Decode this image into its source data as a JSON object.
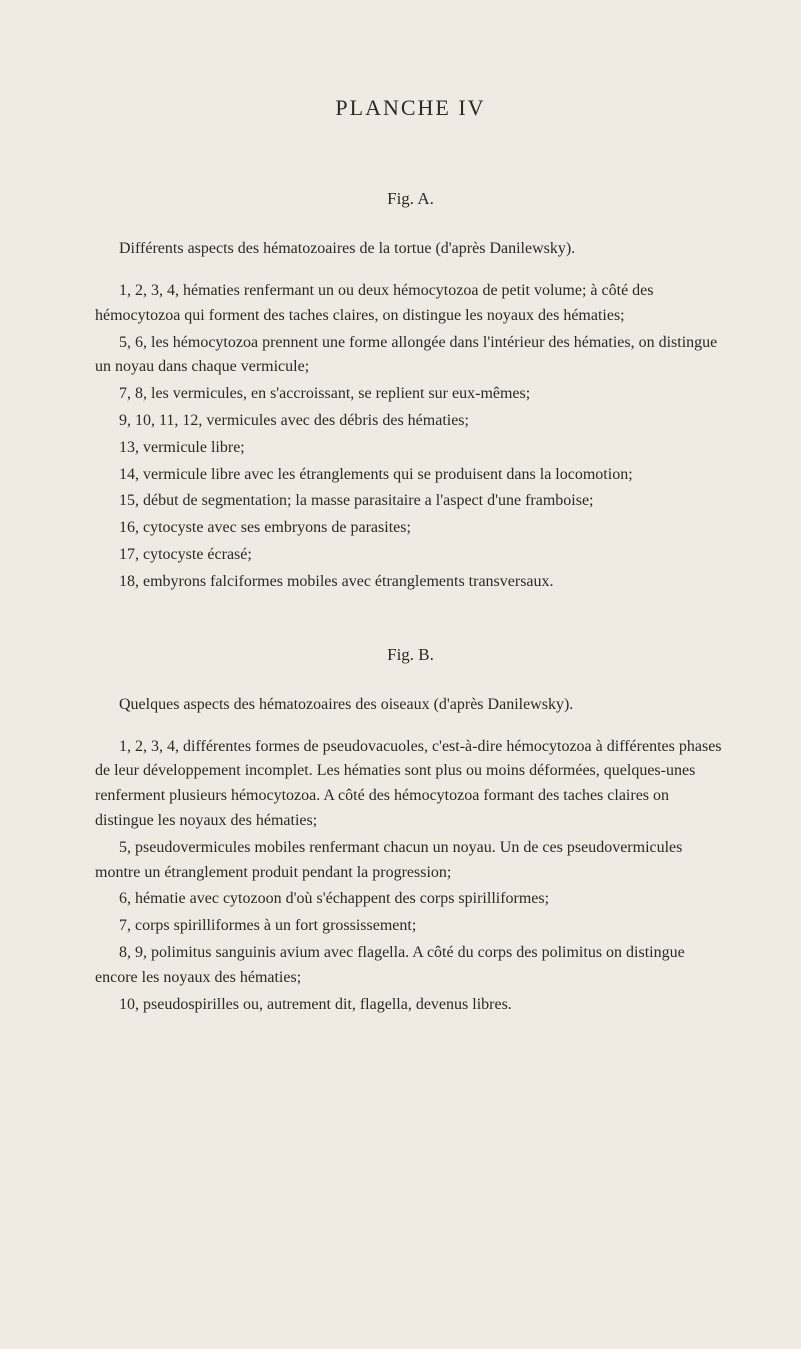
{
  "page": {
    "title": "PLANCHE IV",
    "background_color": "#f0ebe2",
    "text_color": "#2a2a2a"
  },
  "sectionA": {
    "fig_label": "Fig. A.",
    "intro": "Différents aspects des hématozoaires de la tortue (d'après Danilewsky).",
    "items": [
      "1, 2, 3, 4, hématies renfermant un ou deux hémocytozoa de petit volume; à côté des hémocytozoa qui forment des taches claires, on distingue les noyaux des hématies;",
      "5, 6, les hémocytozoa prennent une forme allongée dans l'intérieur des hématies, on distingue un noyau dans chaque vermicule;",
      "7, 8, les vermicules, en s'accroissant, se replient sur eux-mêmes;",
      "9, 10, 11, 12, vermicules avec des débris des hématies;",
      "13, vermicule libre;",
      "14, vermicule libre avec les étranglements qui se produisent dans la locomotion;",
      "15, début de segmentation; la masse parasitaire a l'aspect d'une framboise;",
      "16, cytocyste avec ses embryons de parasites;",
      "17, cytocyste écrasé;",
      "18, embyrons falciformes mobiles avec étranglements transversaux."
    ]
  },
  "sectionB": {
    "fig_label": "Fig. B.",
    "intro": "Quelques aspects des hématozoaires des oiseaux (d'après Danilewsky).",
    "items": [
      "1, 2, 3, 4, différentes formes de pseudovacuoles, c'est-à-dire hémocytozoa à différentes phases de leur développement incomplet. Les hématies sont plus ou moins déformées, quelques-unes renferment plusieurs hémocytozoa. A côté des hémocytozoa formant des taches claires on distingue les noyaux des hématies;",
      "5, pseudovermicules mobiles renfermant chacun un noyau. Un de ces pseudovermicules montre un étranglement produit pendant la progression;",
      "6, hématie avec cytozoon d'où s'échappent des corps spirilliformes;",
      "7, corps spirilliformes à un fort grossissement;",
      "8, 9, polimitus sanguinis avium avec flagella. A côté du corps des polimitus on distingue encore les noyaux des hématies;",
      "10, pseudospirilles ou, autrement dit, flagella, devenus libres."
    ]
  }
}
